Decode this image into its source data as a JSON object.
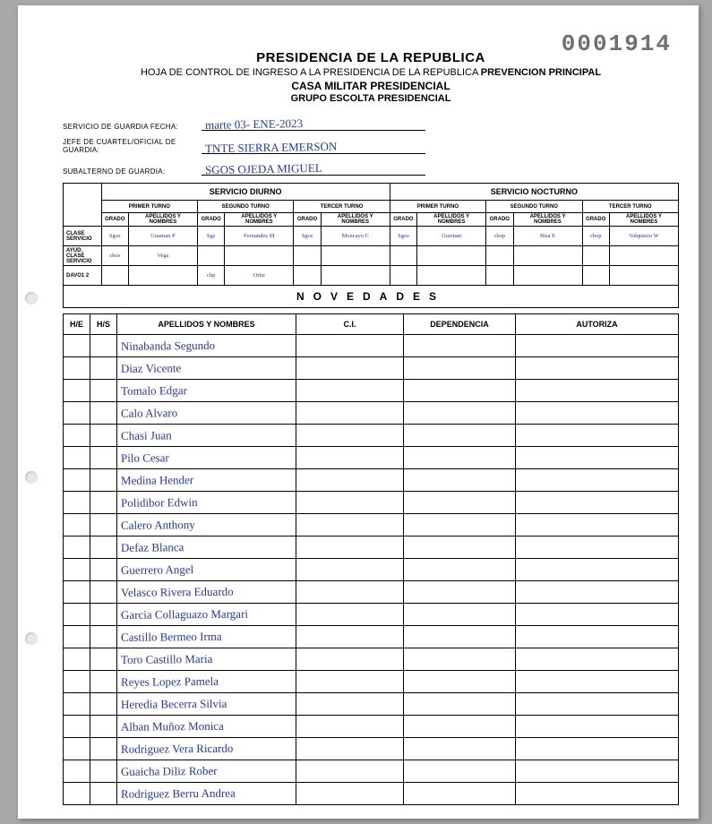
{
  "docnum": "0001914",
  "header": {
    "line1": "PRESIDENCIA DE LA REPUBLICA",
    "line2a": "HOJA DE CONTROL DE INGRESO A LA PRESIDENCIA DE LA REPUBLICA ",
    "line2b": "PREVENCION PRINCIPAL",
    "line3": "CASA MILITAR PRESIDENCIAL",
    "line4": "GRUPO ESCOLTA PRESIDENCIAL"
  },
  "fields": {
    "f1_label": "SERVICIO DE GUARDIA FECHA:",
    "f1_value": "marte 03- ENE-2023",
    "f2_label": "JEFE DE CUARTEL/OFICIAL DE GUARDIA:",
    "f2_value": "TNTE SIERRA EMERSON",
    "f3_label": "SUBALTERNO DE GUARDIA:",
    "f3_value": "SGOS OJEDA MIGUEL"
  },
  "shift": {
    "diurno": "SERVICIO DIURNO",
    "nocturno": "SERVICIO NOCTURNO",
    "turno1": "PRIMER TURNO",
    "turno2": "SEGUNDO TURNO",
    "turno3": "TERCER TURNO",
    "grado": "GRADO",
    "apenom": "APELLIDOS Y NOMBRES",
    "row1_label": "CLASE SERVICIO",
    "row2_label": "AYUD. CLASE SERVICIO",
    "row3_label": "DAVO1 2",
    "cells": {
      "d1g": "Sgos",
      "d1n": "Guaman P",
      "d2g": "Sgs",
      "d2n": "Fernandez M",
      "d3g": "Sgos",
      "d3n": "Moncayo C",
      "n1g": "Sgos",
      "n1n": "Guzman",
      "n2g": "cbop",
      "n2n": "Bisa E",
      "n3g": "cbop",
      "n3n": "Valquiezo W",
      "r2d1g": "cbos",
      "r2d1n": "Vega",
      "r3d2g": "cbp",
      "r3d2n": "Ortiz"
    }
  },
  "novedades": {
    "title": "NOVEDADES",
    "col_he": "H/E",
    "col_hs": "H/S",
    "col_name": "APELLIDOS Y NOMBRES",
    "col_ci": "C.I.",
    "col_dep": "DEPENDENCIA",
    "col_aut": "AUTORIZA",
    "rows": [
      "Ninabanda Segundo",
      "Diaz Vicente",
      "Tomalo Edgar",
      "Calo Alvaro",
      "Chasi Juan",
      "Pilo Cesar",
      "Medina Hender",
      "Polidibor Edwin",
      "Calero Anthony",
      "Defaz Blanca",
      "Guerrero Angel",
      "Velasco Rivera Eduardo",
      "Garcia Collaguazo Margari",
      "Castillo Bermeo Irma",
      "Toro Castillo Maria",
      "Reyes Lopez Pamela",
      "Heredia Becerra Silvia",
      "Alban Muñoz Monica",
      "Rodriguez Vera Ricardo",
      "Guaicha Diliz Rober",
      "Rodriguez Berru Andrea"
    ]
  }
}
